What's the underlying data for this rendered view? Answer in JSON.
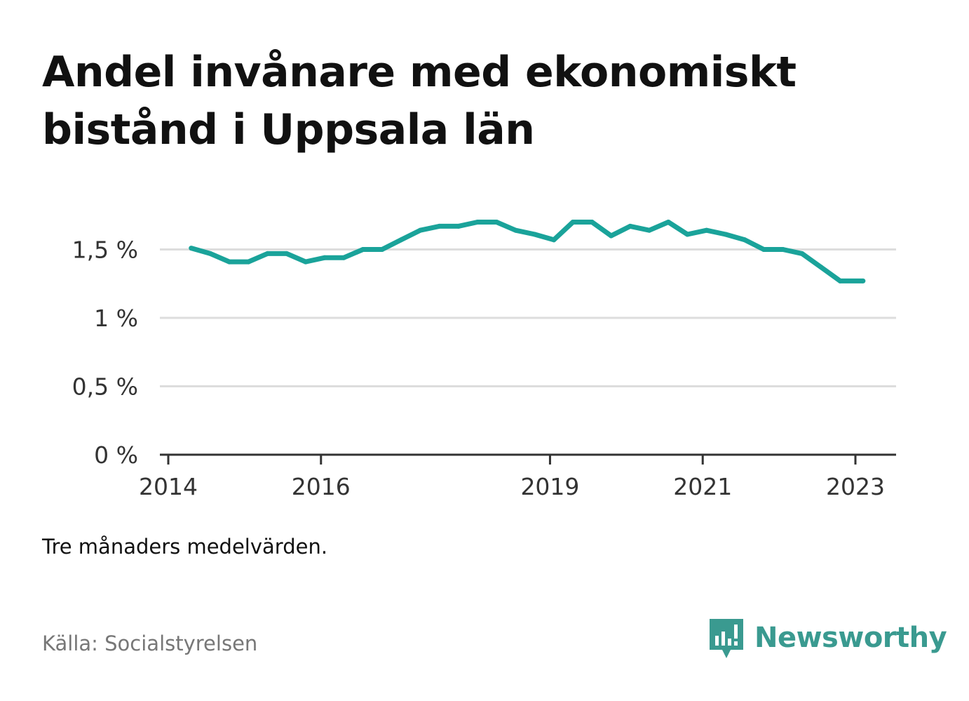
{
  "title": "Andel invånare med ekonomiskt bistånd i Uppsala län",
  "note": "Tre månaders medelvärden.",
  "source": "Källa: Socialstyrelsen",
  "brand": {
    "name": "Newsworthy",
    "icon": "newsworthy-logo-icon",
    "color": "#3a9a90"
  },
  "colors": {
    "line": "#1aa39a",
    "grid": "#dddddd",
    "axis": "#333333"
  },
  "chart_data": {
    "type": "line",
    "title": "Andel invånare med ekonomiskt bistånd i Uppsala län",
    "xlabel": "",
    "ylabel": "",
    "ylim": [
      0,
      2
    ],
    "yticks": [
      0,
      0.5,
      1,
      1.5
    ],
    "ytick_labels": [
      "0 %",
      "0,5 %",
      "1 %",
      "1,5 %"
    ],
    "xlim": [
      2014.0,
      2023.5
    ],
    "xticks": [
      2014,
      2016,
      2019,
      2021,
      2023
    ],
    "xtick_labels": [
      "2014",
      "2016",
      "2019",
      "2021",
      "2023"
    ],
    "grid": true,
    "series": [
      {
        "values": [
          [
            2014.3,
            1.51
          ],
          [
            2014.55,
            1.47
          ],
          [
            2014.8,
            1.41
          ],
          [
            2015.05,
            1.41
          ],
          [
            2015.3,
            1.47
          ],
          [
            2015.55,
            1.47
          ],
          [
            2015.8,
            1.41
          ],
          [
            2016.05,
            1.44
          ],
          [
            2016.3,
            1.44
          ],
          [
            2016.55,
            1.5
          ],
          [
            2016.8,
            1.5
          ],
          [
            2017.05,
            1.57
          ],
          [
            2017.3,
            1.64
          ],
          [
            2017.55,
            1.67
          ],
          [
            2017.8,
            1.67
          ],
          [
            2018.05,
            1.7
          ],
          [
            2018.3,
            1.7
          ],
          [
            2018.55,
            1.64
          ],
          [
            2018.8,
            1.61
          ],
          [
            2019.05,
            1.57
          ],
          [
            2019.3,
            1.7
          ],
          [
            2019.55,
            1.7
          ],
          [
            2019.8,
            1.6
          ],
          [
            2020.05,
            1.67
          ],
          [
            2020.3,
            1.64
          ],
          [
            2020.55,
            1.7
          ],
          [
            2020.8,
            1.61
          ],
          [
            2021.05,
            1.64
          ],
          [
            2021.3,
            1.61
          ],
          [
            2021.55,
            1.57
          ],
          [
            2021.8,
            1.5
          ],
          [
            2022.05,
            1.5
          ],
          [
            2022.3,
            1.47
          ],
          [
            2022.55,
            1.37
          ],
          [
            2022.8,
            1.27
          ],
          [
            2023.1,
            1.27
          ]
        ]
      }
    ]
  }
}
